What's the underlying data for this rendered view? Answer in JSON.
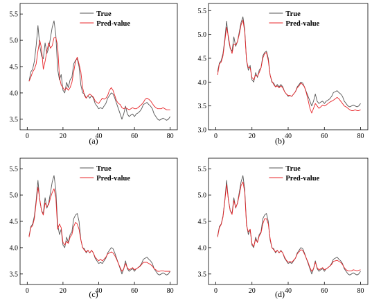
{
  "colors": {
    "true_series": "#555555",
    "pred_series": "#e8262a",
    "axis": "#000000"
  },
  "chart_data": [
    {
      "type": "line",
      "panel_label": "(a)",
      "title": "",
      "xlabel": "",
      "ylabel": "",
      "xlim": [
        -4,
        84
      ],
      "ylim": [
        3.3,
        5.7
      ],
      "xticks": [
        0,
        20,
        40,
        60,
        80
      ],
      "yticks": [
        3.5,
        4.0,
        4.5,
        5.0,
        5.5
      ],
      "ytick_labels": [
        "3.5",
        "4.0",
        "4.5",
        "5.0",
        "5.5"
      ],
      "grid": false,
      "legend_position": "top-center",
      "x": [
        1,
        2,
        3,
        4,
        5,
        6,
        7,
        8,
        9,
        10,
        11,
        12,
        13,
        14,
        15,
        16,
        17,
        18,
        19,
        20,
        21,
        22,
        23,
        24,
        25,
        26,
        27,
        28,
        29,
        30,
        31,
        32,
        33,
        34,
        35,
        36,
        37,
        38,
        39,
        40,
        41,
        42,
        43,
        44,
        45,
        46,
        47,
        48,
        49,
        50,
        51,
        52,
        53,
        54,
        55,
        56,
        57,
        58,
        59,
        60,
        61,
        62,
        63,
        64,
        65,
        66,
        67,
        68,
        69,
        70,
        71,
        72,
        73,
        74,
        75,
        76,
        77,
        78,
        79,
        80
      ],
      "series": [
        {
          "name": "True",
          "color": "#555555",
          "values": [
            4.22,
            4.4,
            4.45,
            4.6,
            4.9,
            5.28,
            4.9,
            4.7,
            4.65,
            4.95,
            4.75,
            4.85,
            5.05,
            5.25,
            5.37,
            5.1,
            4.45,
            4.25,
            4.35,
            4.05,
            4.0,
            4.2,
            4.1,
            4.25,
            4.3,
            4.55,
            4.62,
            4.65,
            4.5,
            4.15,
            4.0,
            3.98,
            3.9,
            3.95,
            3.9,
            3.95,
            3.9,
            3.8,
            3.75,
            3.7,
            3.72,
            3.7,
            3.75,
            3.8,
            3.9,
            3.95,
            4.0,
            3.98,
            3.9,
            3.8,
            3.7,
            3.6,
            3.5,
            3.6,
            3.75,
            3.6,
            3.55,
            3.58,
            3.6,
            3.55,
            3.6,
            3.62,
            3.65,
            3.7,
            3.78,
            3.8,
            3.82,
            3.78,
            3.75,
            3.7,
            3.6,
            3.55,
            3.5,
            3.48,
            3.5,
            3.52,
            3.5,
            3.48,
            3.5,
            3.55
          ]
        },
        {
          "name": "Pred-value",
          "color": "#e8262a",
          "values": [
            4.22,
            4.3,
            4.4,
            4.45,
            4.55,
            4.8,
            5.0,
            4.85,
            4.45,
            4.6,
            4.8,
            4.95,
            4.85,
            4.9,
            5.05,
            5.05,
            4.9,
            4.3,
            4.15,
            4.1,
            4.05,
            4.1,
            4.05,
            4.1,
            4.2,
            4.4,
            4.6,
            4.68,
            4.55,
            4.4,
            4.1,
            3.95,
            3.9,
            3.95,
            3.98,
            3.95,
            3.92,
            3.85,
            3.82,
            3.8,
            3.85,
            3.9,
            3.88,
            3.9,
            3.95,
            4.05,
            4.1,
            4.05,
            3.95,
            3.85,
            3.8,
            3.78,
            3.72,
            3.7,
            3.72,
            3.7,
            3.68,
            3.7,
            3.72,
            3.7,
            3.7,
            3.72,
            3.75,
            3.78,
            3.82,
            3.88,
            3.9,
            3.88,
            3.85,
            3.8,
            3.75,
            3.72,
            3.7,
            3.7,
            3.7,
            3.72,
            3.7,
            3.68,
            3.68,
            3.68
          ]
        }
      ]
    },
    {
      "type": "line",
      "panel_label": "(b)",
      "title": "",
      "xlabel": "",
      "ylabel": "",
      "xlim": [
        -4,
        84
      ],
      "ylim": [
        3.0,
        5.65
      ],
      "xticks": [
        0,
        20,
        40,
        60,
        80
      ],
      "yticks": [
        3.0,
        3.5,
        4.0,
        4.5,
        5.0,
        5.5
      ],
      "ytick_labels": [
        "3.0",
        "3.5",
        "4.0",
        "4.5",
        "5.0",
        "5.5"
      ],
      "grid": false,
      "legend_position": "top-center",
      "x": [
        1,
        2,
        3,
        4,
        5,
        6,
        7,
        8,
        9,
        10,
        11,
        12,
        13,
        14,
        15,
        16,
        17,
        18,
        19,
        20,
        21,
        22,
        23,
        24,
        25,
        26,
        27,
        28,
        29,
        30,
        31,
        32,
        33,
        34,
        35,
        36,
        37,
        38,
        39,
        40,
        41,
        42,
        43,
        44,
        45,
        46,
        47,
        48,
        49,
        50,
        51,
        52,
        53,
        54,
        55,
        56,
        57,
        58,
        59,
        60,
        61,
        62,
        63,
        64,
        65,
        66,
        67,
        68,
        69,
        70,
        71,
        72,
        73,
        74,
        75,
        76,
        77,
        78,
        79,
        80
      ],
      "series": [
        {
          "name": "True",
          "color": "#555555",
          "values": [
            4.22,
            4.4,
            4.45,
            4.6,
            4.9,
            5.28,
            4.9,
            4.7,
            4.65,
            4.95,
            4.75,
            4.85,
            5.05,
            5.25,
            5.37,
            5.1,
            4.45,
            4.25,
            4.35,
            4.05,
            4.0,
            4.2,
            4.1,
            4.25,
            4.3,
            4.55,
            4.62,
            4.65,
            4.5,
            4.15,
            4.0,
            3.98,
            3.9,
            3.95,
            3.9,
            3.95,
            3.9,
            3.8,
            3.75,
            3.7,
            3.72,
            3.7,
            3.75,
            3.8,
            3.9,
            3.95,
            4.0,
            3.98,
            3.9,
            3.8,
            3.7,
            3.6,
            3.5,
            3.6,
            3.75,
            3.6,
            3.55,
            3.58,
            3.6,
            3.55,
            3.6,
            3.62,
            3.65,
            3.7,
            3.78,
            3.8,
            3.82,
            3.78,
            3.75,
            3.7,
            3.6,
            3.55,
            3.5,
            3.48,
            3.5,
            3.52,
            3.5,
            3.48,
            3.5,
            3.55
          ]
        },
        {
          "name": "Pred-value",
          "color": "#e8262a",
          "values": [
            4.15,
            4.38,
            4.42,
            4.55,
            4.85,
            5.15,
            4.95,
            4.72,
            4.6,
            4.8,
            4.78,
            4.85,
            5.0,
            5.2,
            5.3,
            5.05,
            4.45,
            4.3,
            4.3,
            4.1,
            4.05,
            4.15,
            4.12,
            4.2,
            4.3,
            4.5,
            4.6,
            4.62,
            4.45,
            4.15,
            4.02,
            3.95,
            3.9,
            3.92,
            3.88,
            3.92,
            3.88,
            3.8,
            3.75,
            3.72,
            3.72,
            3.7,
            3.75,
            3.8,
            3.88,
            3.92,
            3.98,
            3.95,
            3.9,
            3.78,
            3.62,
            3.45,
            3.35,
            3.45,
            3.55,
            3.5,
            3.45,
            3.48,
            3.52,
            3.5,
            3.52,
            3.55,
            3.58,
            3.6,
            3.62,
            3.65,
            3.68,
            3.65,
            3.6,
            3.55,
            3.5,
            3.48,
            3.45,
            3.42,
            3.4,
            3.4,
            3.42,
            3.4,
            3.4,
            3.42
          ]
        }
      ]
    },
    {
      "type": "line",
      "panel_label": "(c)",
      "title": "",
      "xlabel": "",
      "ylabel": "",
      "xlim": [
        -4,
        84
      ],
      "ylim": [
        3.3,
        5.7
      ],
      "xticks": [
        0,
        20,
        40,
        60,
        80
      ],
      "yticks": [
        3.5,
        4.0,
        4.5,
        5.0,
        5.5
      ],
      "ytick_labels": [
        "3.5",
        "4.0",
        "4.5",
        "5.0",
        "5.5"
      ],
      "grid": false,
      "legend_position": "top-center",
      "x": [
        1,
        2,
        3,
        4,
        5,
        6,
        7,
        8,
        9,
        10,
        11,
        12,
        13,
        14,
        15,
        16,
        17,
        18,
        19,
        20,
        21,
        22,
        23,
        24,
        25,
        26,
        27,
        28,
        29,
        30,
        31,
        32,
        33,
        34,
        35,
        36,
        37,
        38,
        39,
        40,
        41,
        42,
        43,
        44,
        45,
        46,
        47,
        48,
        49,
        50,
        51,
        52,
        53,
        54,
        55,
        56,
        57,
        58,
        59,
        60,
        61,
        62,
        63,
        64,
        65,
        66,
        67,
        68,
        69,
        70,
        71,
        72,
        73,
        74,
        75,
        76,
        77,
        78,
        79,
        80
      ],
      "series": [
        {
          "name": "True",
          "color": "#555555",
          "values": [
            4.22,
            4.4,
            4.45,
            4.6,
            4.9,
            5.28,
            4.9,
            4.7,
            4.65,
            4.95,
            4.75,
            4.85,
            5.05,
            5.25,
            5.37,
            5.1,
            4.45,
            4.25,
            4.35,
            4.05,
            4.0,
            4.2,
            4.1,
            4.25,
            4.3,
            4.55,
            4.62,
            4.65,
            4.5,
            4.15,
            4.0,
            3.98,
            3.9,
            3.95,
            3.9,
            3.95,
            3.9,
            3.8,
            3.75,
            3.7,
            3.72,
            3.7,
            3.75,
            3.8,
            3.9,
            3.95,
            4.0,
            3.98,
            3.9,
            3.8,
            3.7,
            3.6,
            3.5,
            3.6,
            3.75,
            3.6,
            3.55,
            3.58,
            3.6,
            3.55,
            3.6,
            3.62,
            3.65,
            3.7,
            3.78,
            3.8,
            3.82,
            3.78,
            3.75,
            3.7,
            3.6,
            3.55,
            3.5,
            3.48,
            3.5,
            3.52,
            3.5,
            3.48,
            3.5,
            3.55
          ]
        },
        {
          "name": "Pred-value",
          "color": "#e8262a",
          "values": [
            4.2,
            4.38,
            4.42,
            4.55,
            4.85,
            5.15,
            4.92,
            4.7,
            4.62,
            4.85,
            4.78,
            4.82,
            4.95,
            5.05,
            5.12,
            4.95,
            4.35,
            4.45,
            4.38,
            4.1,
            4.05,
            4.12,
            4.08,
            4.2,
            4.25,
            4.4,
            4.48,
            4.45,
            4.35,
            4.15,
            4.0,
            3.95,
            3.92,
            3.95,
            3.9,
            3.95,
            3.9,
            3.82,
            3.78,
            3.75,
            3.78,
            3.75,
            3.78,
            3.82,
            3.88,
            3.9,
            3.92,
            3.9,
            3.85,
            3.78,
            3.7,
            3.62,
            3.55,
            3.6,
            3.7,
            3.62,
            3.58,
            3.6,
            3.62,
            3.58,
            3.6,
            3.62,
            3.64,
            3.68,
            3.72,
            3.72,
            3.72,
            3.7,
            3.68,
            3.65,
            3.6,
            3.58,
            3.55,
            3.55,
            3.56,
            3.56,
            3.55,
            3.55,
            3.55,
            3.55
          ]
        }
      ]
    },
    {
      "type": "line",
      "panel_label": "(d)",
      "title": "",
      "xlabel": "",
      "ylabel": "",
      "xlim": [
        -4,
        84
      ],
      "ylim": [
        3.3,
        5.7
      ],
      "xticks": [
        0,
        20,
        40,
        60,
        80
      ],
      "yticks": [
        3.5,
        4.0,
        4.5,
        5.0,
        5.5
      ],
      "ytick_labels": [
        "3.5",
        "4.0",
        "4.5",
        "5.0",
        "5.5"
      ],
      "grid": false,
      "legend_position": "top-center",
      "x": [
        1,
        2,
        3,
        4,
        5,
        6,
        7,
        8,
        9,
        10,
        11,
        12,
        13,
        14,
        15,
        16,
        17,
        18,
        19,
        20,
        21,
        22,
        23,
        24,
        25,
        26,
        27,
        28,
        29,
        30,
        31,
        32,
        33,
        34,
        35,
        36,
        37,
        38,
        39,
        40,
        41,
        42,
        43,
        44,
        45,
        46,
        47,
        48,
        49,
        50,
        51,
        52,
        53,
        54,
        55,
        56,
        57,
        58,
        59,
        60,
        61,
        62,
        63,
        64,
        65,
        66,
        67,
        68,
        69,
        70,
        71,
        72,
        73,
        74,
        75,
        76,
        77,
        78,
        79,
        80
      ],
      "series": [
        {
          "name": "True",
          "color": "#555555",
          "values": [
            4.22,
            4.4,
            4.45,
            4.6,
            4.9,
            5.28,
            4.9,
            4.7,
            4.65,
            4.95,
            4.75,
            4.85,
            5.05,
            5.25,
            5.37,
            5.1,
            4.45,
            4.25,
            4.35,
            4.05,
            4.0,
            4.2,
            4.1,
            4.25,
            4.3,
            4.55,
            4.62,
            4.65,
            4.5,
            4.15,
            4.0,
            3.98,
            3.9,
            3.95,
            3.9,
            3.95,
            3.9,
            3.8,
            3.75,
            3.7,
            3.72,
            3.7,
            3.75,
            3.8,
            3.9,
            3.95,
            4.0,
            3.98,
            3.9,
            3.8,
            3.7,
            3.6,
            3.5,
            3.6,
            3.75,
            3.6,
            3.55,
            3.58,
            3.6,
            3.55,
            3.6,
            3.62,
            3.65,
            3.7,
            3.78,
            3.8,
            3.82,
            3.78,
            3.75,
            3.7,
            3.6,
            3.55,
            3.5,
            3.48,
            3.5,
            3.52,
            3.5,
            3.48,
            3.5,
            3.55
          ]
        },
        {
          "name": "Pred-value",
          "color": "#e8262a",
          "values": [
            4.2,
            4.38,
            4.44,
            4.58,
            4.88,
            5.2,
            4.9,
            4.7,
            4.63,
            4.9,
            4.76,
            4.84,
            5.0,
            5.18,
            5.25,
            5.05,
            4.42,
            4.3,
            4.35,
            4.08,
            4.02,
            4.16,
            4.1,
            4.22,
            4.28,
            4.45,
            4.55,
            4.55,
            4.45,
            4.18,
            4.0,
            3.96,
            3.92,
            3.95,
            3.9,
            3.94,
            3.9,
            3.82,
            3.76,
            3.72,
            3.74,
            3.72,
            3.76,
            3.8,
            3.88,
            3.92,
            3.96,
            3.95,
            3.88,
            3.8,
            3.72,
            3.62,
            3.55,
            3.6,
            3.72,
            3.62,
            3.58,
            3.6,
            3.62,
            3.58,
            3.6,
            3.62,
            3.65,
            3.68,
            3.74,
            3.75,
            3.76,
            3.74,
            3.72,
            3.68,
            3.62,
            3.58,
            3.56,
            3.56,
            3.56,
            3.58,
            3.57,
            3.56,
            3.57,
            3.58
          ]
        }
      ]
    }
  ]
}
